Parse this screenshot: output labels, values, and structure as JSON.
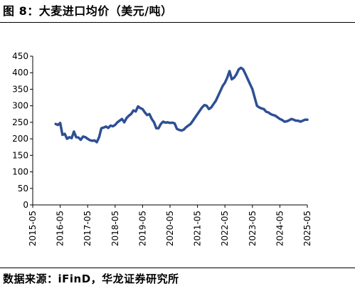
{
  "header": {
    "figure_label": "图 8：",
    "title": "大麦进口均价（美元/吨）"
  },
  "footer": {
    "source": "数据来源：iFinD，华龙证券研究所"
  },
  "colors": {
    "line": "#2E4F96",
    "axis": "#000000"
  },
  "chart_data": {
    "type": "line",
    "title": "大麦进口均价（美元/吨）",
    "xlabel": "",
    "ylabel": "",
    "ylim": [
      0,
      450
    ],
    "yticks": [
      "0",
      "50",
      "100",
      "150",
      "200",
      "250",
      "300",
      "350",
      "400",
      "450"
    ],
    "xticks": [
      "2015-05",
      "2016-05",
      "2017-05",
      "2018-05",
      "2019-05",
      "2020-05",
      "2021-05",
      "2022-05",
      "2023-05",
      "2024-05",
      "2025-05"
    ],
    "grid": false,
    "legend": "none",
    "series": [
      {
        "name": "",
        "x": [
          "2016-03",
          "2016-04",
          "2016-05",
          "2016-06",
          "2016-07",
          "2016-08",
          "2016-09",
          "2016-10",
          "2016-11",
          "2016-12",
          "2017-01",
          "2017-02",
          "2017-03",
          "2017-04",
          "2017-05",
          "2017-06",
          "2017-07",
          "2017-08",
          "2017-09",
          "2017-10",
          "2017-11",
          "2017-12",
          "2018-01",
          "2018-02",
          "2018-03",
          "2018-04",
          "2018-05",
          "2018-06",
          "2018-07",
          "2018-08",
          "2018-09",
          "2018-10",
          "2018-11",
          "2018-12",
          "2019-01",
          "2019-02",
          "2019-03",
          "2019-04",
          "2019-05",
          "2019-06",
          "2019-07",
          "2019-08",
          "2019-09",
          "2019-10",
          "2019-11",
          "2019-12",
          "2020-01",
          "2020-02",
          "2020-03",
          "2020-04",
          "2020-05",
          "2020-06",
          "2020-07",
          "2020-08",
          "2020-09",
          "2020-10",
          "2020-11",
          "2020-12",
          "2021-01",
          "2021-02",
          "2021-03",
          "2021-04",
          "2021-05",
          "2021-06",
          "2021-07",
          "2021-08",
          "2021-09",
          "2021-10",
          "2021-11",
          "2021-12",
          "2022-01",
          "2022-02",
          "2022-03",
          "2022-04",
          "2022-05",
          "2022-06",
          "2022-07",
          "2022-08",
          "2022-09",
          "2022-10",
          "2022-11",
          "2022-12",
          "2023-01",
          "2023-02",
          "2023-03",
          "2023-04",
          "2023-05",
          "2023-06",
          "2023-07",
          "2023-08",
          "2023-09",
          "2023-10",
          "2023-11",
          "2023-12",
          "2024-01",
          "2024-02",
          "2024-03",
          "2024-04",
          "2024-05",
          "2024-06",
          "2024-07",
          "2024-08",
          "2024-09",
          "2024-10",
          "2024-11",
          "2024-12",
          "2025-01",
          "2025-02",
          "2025-03",
          "2025-04",
          "2025-05"
        ],
        "values": [
          245,
          242,
          248,
          212,
          215,
          200,
          205,
          202,
          222,
          205,
          204,
          197,
          207,
          205,
          200,
          196,
          194,
          195,
          190,
          205,
          232,
          234,
          237,
          233,
          240,
          238,
          242,
          250,
          255,
          260,
          250,
          263,
          270,
          275,
          286,
          283,
          298,
          293,
          290,
          280,
          272,
          275,
          260,
          250,
          232,
          232,
          245,
          252,
          249,
          250,
          248,
          249,
          247,
          230,
          227,
          225,
          228,
          235,
          240,
          245,
          255,
          265,
          275,
          285,
          295,
          302,
          300,
          290,
          295,
          305,
          315,
          330,
          345,
          360,
          370,
          385,
          405,
          380,
          385,
          395,
          410,
          415,
          410,
          395,
          380,
          365,
          350,
          325,
          300,
          295,
          292,
          290,
          282,
          280,
          275,
          272,
          270,
          265,
          260,
          257,
          252,
          253,
          256,
          260,
          258,
          255,
          255,
          252,
          255,
          258,
          258
        ]
      }
    ]
  }
}
